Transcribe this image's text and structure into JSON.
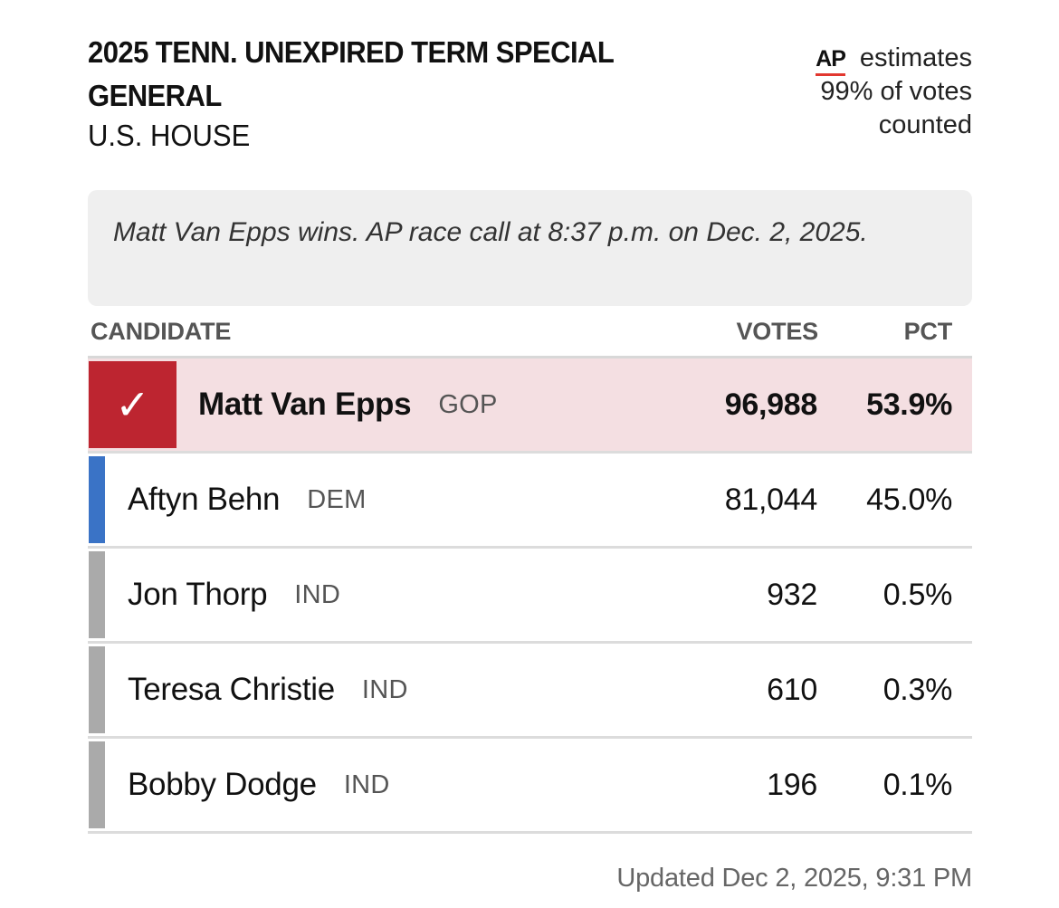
{
  "header": {
    "title": "2025 TENN. UNEXPIRED TERM SPECIAL GENERAL",
    "subtitle": "U.S. HOUSE",
    "ap_logo": "AP",
    "ap_line1": "estimates",
    "ap_line2": "99% of votes",
    "ap_line3": "counted"
  },
  "banner": {
    "text": "Matt Van Epps wins. AP race call at 8:37 p.m. on Dec. 2, 2025."
  },
  "table": {
    "columns": {
      "candidate": "CANDIDATE",
      "votes": "VOTES",
      "pct": "PCT"
    },
    "rows": [
      {
        "name": "Matt Van Epps",
        "party": "GOP",
        "votes": "96,988",
        "pct": "53.9%",
        "winner": true,
        "color": "#bd2530"
      },
      {
        "name": "Aftyn Behn",
        "party": "DEM",
        "votes": "81,044",
        "pct": "45.0%",
        "winner": false,
        "color": "#3a73c6"
      },
      {
        "name": "Jon Thorp",
        "party": "IND",
        "votes": "932",
        "pct": "0.5%",
        "winner": false,
        "color": "#aaaaaa"
      },
      {
        "name": "Teresa Christie",
        "party": "IND",
        "votes": "610",
        "pct": "0.3%",
        "winner": false,
        "color": "#aaaaaa"
      },
      {
        "name": "Bobby Dodge",
        "party": "IND",
        "votes": "196",
        "pct": "0.1%",
        "winner": false,
        "color": "#aaaaaa"
      }
    ],
    "winner_icon": "checkmark-icon"
  },
  "footer": {
    "updated": "Updated Dec 2, 2025, 9:31 PM"
  }
}
